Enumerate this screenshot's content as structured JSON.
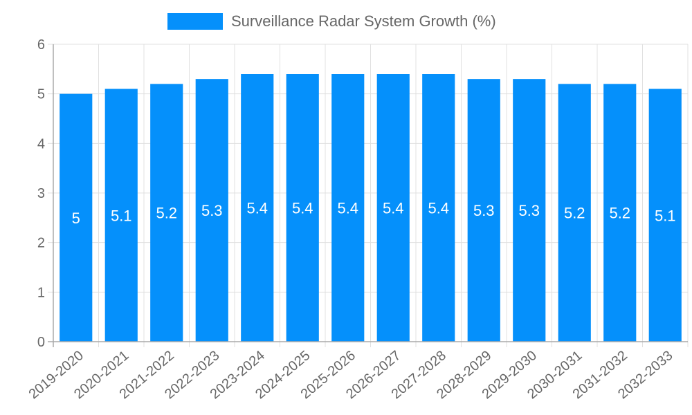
{
  "chart_data": {
    "type": "bar",
    "title": "",
    "legend": [
      "Surveillance Radar System Growth (%)"
    ],
    "legend_position": "top",
    "xlabel": "",
    "ylabel": "",
    "ylim": [
      0,
      6
    ],
    "yticks": [
      0,
      1,
      2,
      3,
      4,
      5,
      6
    ],
    "grid": true,
    "categories": [
      "2019-2020",
      "2020-2021",
      "2021-2022",
      "2022-2023",
      "2023-2024",
      "2024-2025",
      "2025-2026",
      "2026-2027",
      "2027-2028",
      "2028-2029",
      "2029-2030",
      "2030-2031",
      "2031-2032",
      "2032-2033"
    ],
    "series": [
      {
        "name": "Surveillance Radar System Growth (%)",
        "color": "#0590fb",
        "values": [
          5,
          5.1,
          5.2,
          5.3,
          5.4,
          5.4,
          5.4,
          5.4,
          5.4,
          5.3,
          5.3,
          5.2,
          5.2,
          5.1
        ]
      }
    ],
    "data_labels": [
      "5",
      "5.1",
      "5.2",
      "5.3",
      "5.4",
      "5.4",
      "5.4",
      "5.4",
      "5.4",
      "5.3",
      "5.3",
      "5.2",
      "5.2",
      "5.1"
    ]
  },
  "legend": {
    "label": "Surveillance Radar System Growth (%)",
    "color": "#0590fb"
  }
}
